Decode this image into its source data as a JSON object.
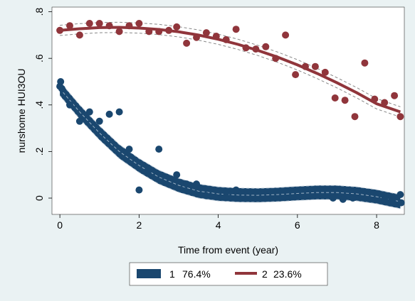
{
  "chart_data": {
    "type": "scatter",
    "xlabel": "Time from event (year)",
    "ylabel": "nurshome HUI3OU",
    "xlim": [
      -0.2,
      8.7
    ],
    "ylim": [
      -0.07,
      0.82
    ],
    "x_ticks": [
      0,
      2,
      4,
      6,
      8
    ],
    "y_ticks": [
      0,
      0.2,
      0.4,
      0.6,
      0.8
    ],
    "x_tick_labels": [
      "0",
      "2",
      "4",
      "6",
      "8"
    ],
    "y_tick_labels": [
      "0",
      ".2",
      ".4",
      ".6",
      ".8"
    ],
    "grid": false,
    "legend_position": "bottom",
    "series": [
      {
        "name": "1",
        "share": "76.4%",
        "color": "#1a476f",
        "points": [
          [
            0,
            0.48
          ],
          [
            0.02,
            0.5
          ],
          [
            0.05,
            0.47
          ],
          [
            0.25,
            0.4
          ],
          [
            0.5,
            0.33
          ],
          [
            0.75,
            0.37
          ],
          [
            1.0,
            0.33
          ],
          [
            1.25,
            0.36
          ],
          [
            1.5,
            0.37
          ],
          [
            1.75,
            0.21
          ],
          [
            2.0,
            0.035
          ],
          [
            2.25,
            0.12
          ],
          [
            2.5,
            0.21
          ],
          [
            2.95,
            0.1
          ],
          [
            3.2,
            0.06
          ],
          [
            3.45,
            0.06
          ],
          [
            3.7,
            0.01
          ],
          [
            4.2,
            0.025
          ],
          [
            4.45,
            0.035
          ],
          [
            6.9,
            0.0
          ],
          [
            7.15,
            -0.005
          ],
          [
            7.4,
            0.0
          ],
          [
            8.2,
            -0.005
          ],
          [
            8.4,
            -0.01
          ],
          [
            8.6,
            0.015
          ],
          [
            8.62,
            -0.02
          ]
        ],
        "fit": [
          [
            0,
            0.47
          ],
          [
            0.5,
            0.37
          ],
          [
            1.0,
            0.28
          ],
          [
            1.5,
            0.2
          ],
          [
            2.0,
            0.14
          ],
          [
            2.5,
            0.09
          ],
          [
            3.0,
            0.055
          ],
          [
            3.5,
            0.03
          ],
          [
            4.0,
            0.018
          ],
          [
            4.5,
            0.013
          ],
          [
            5.0,
            0.012
          ],
          [
            5.5,
            0.015
          ],
          [
            6.0,
            0.02
          ],
          [
            6.5,
            0.024
          ],
          [
            7.0,
            0.024
          ],
          [
            7.5,
            0.018
          ],
          [
            8.0,
            0.006
          ],
          [
            8.3,
            -0.005
          ],
          [
            8.6,
            -0.015
          ]
        ]
      },
      {
        "name": "2",
        "share": "23.6%",
        "color": "#90353b",
        "points": [
          [
            0,
            0.72
          ],
          [
            0.25,
            0.74
          ],
          [
            0.5,
            0.7
          ],
          [
            0.75,
            0.75
          ],
          [
            1.0,
            0.75
          ],
          [
            1.25,
            0.74
          ],
          [
            1.5,
            0.715
          ],
          [
            1.75,
            0.74
          ],
          [
            2.0,
            0.75
          ],
          [
            2.25,
            0.715
          ],
          [
            2.5,
            0.715
          ],
          [
            2.75,
            0.72
          ],
          [
            2.95,
            0.735
          ],
          [
            3.2,
            0.665
          ],
          [
            3.45,
            0.69
          ],
          [
            3.7,
            0.71
          ],
          [
            3.95,
            0.695
          ],
          [
            4.2,
            0.68
          ],
          [
            4.45,
            0.725
          ],
          [
            4.7,
            0.645
          ],
          [
            4.95,
            0.64
          ],
          [
            5.2,
            0.65
          ],
          [
            5.45,
            0.6
          ],
          [
            5.7,
            0.7
          ],
          [
            5.95,
            0.53
          ],
          [
            6.2,
            0.565
          ],
          [
            6.45,
            0.565
          ],
          [
            6.7,
            0.54
          ],
          [
            6.95,
            0.43
          ],
          [
            7.2,
            0.42
          ],
          [
            7.45,
            0.35
          ],
          [
            7.7,
            0.58
          ],
          [
            7.95,
            0.425
          ],
          [
            8.2,
            0.41
          ],
          [
            8.45,
            0.44
          ],
          [
            8.6,
            0.35
          ]
        ],
        "fit": [
          [
            0,
            0.72
          ],
          [
            0.5,
            0.727
          ],
          [
            1.0,
            0.732
          ],
          [
            1.5,
            0.733
          ],
          [
            2.0,
            0.73
          ],
          [
            2.5,
            0.724
          ],
          [
            3.0,
            0.714
          ],
          [
            3.5,
            0.7
          ],
          [
            4.0,
            0.682
          ],
          [
            4.5,
            0.66
          ],
          [
            5.0,
            0.634
          ],
          [
            5.5,
            0.605
          ],
          [
            6.0,
            0.572
          ],
          [
            6.5,
            0.535
          ],
          [
            7.0,
            0.495
          ],
          [
            7.5,
            0.452
          ],
          [
            8.0,
            0.405
          ],
          [
            8.6,
            0.37
          ]
        ]
      }
    ]
  }
}
